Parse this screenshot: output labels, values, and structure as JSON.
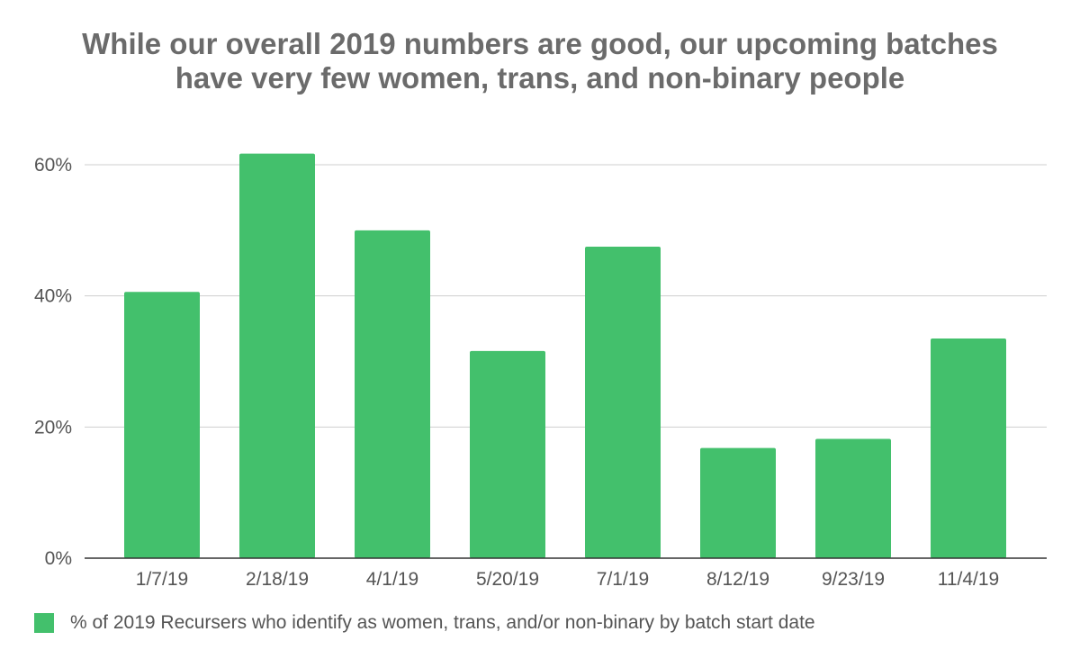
{
  "chart_data": {
    "type": "bar",
    "title_lines": [
      "While our overall 2019 numbers are good, our upcoming batches",
      "have very few women, trans, and non-binary people"
    ],
    "categories": [
      "1/7/19",
      "2/18/19",
      "4/1/19",
      "5/20/19",
      "7/1/19",
      "8/12/19",
      "9/23/19",
      "11/4/19"
    ],
    "series": [
      {
        "name": "% of 2019 Recursers who identify as women, trans, and/or non-binary by batch start date",
        "values": [
          40.6,
          61.7,
          50.0,
          31.6,
          47.5,
          16.8,
          18.2,
          33.5
        ],
        "color": "#43c06c"
      }
    ],
    "ylim": [
      0,
      60
    ],
    "yticks": [
      0,
      20,
      40,
      60
    ],
    "ytick_labels": [
      "0%",
      "20%",
      "40%",
      "60%"
    ],
    "grid": true,
    "legend_position": "bottom-left",
    "xlabel": "",
    "ylabel": ""
  }
}
